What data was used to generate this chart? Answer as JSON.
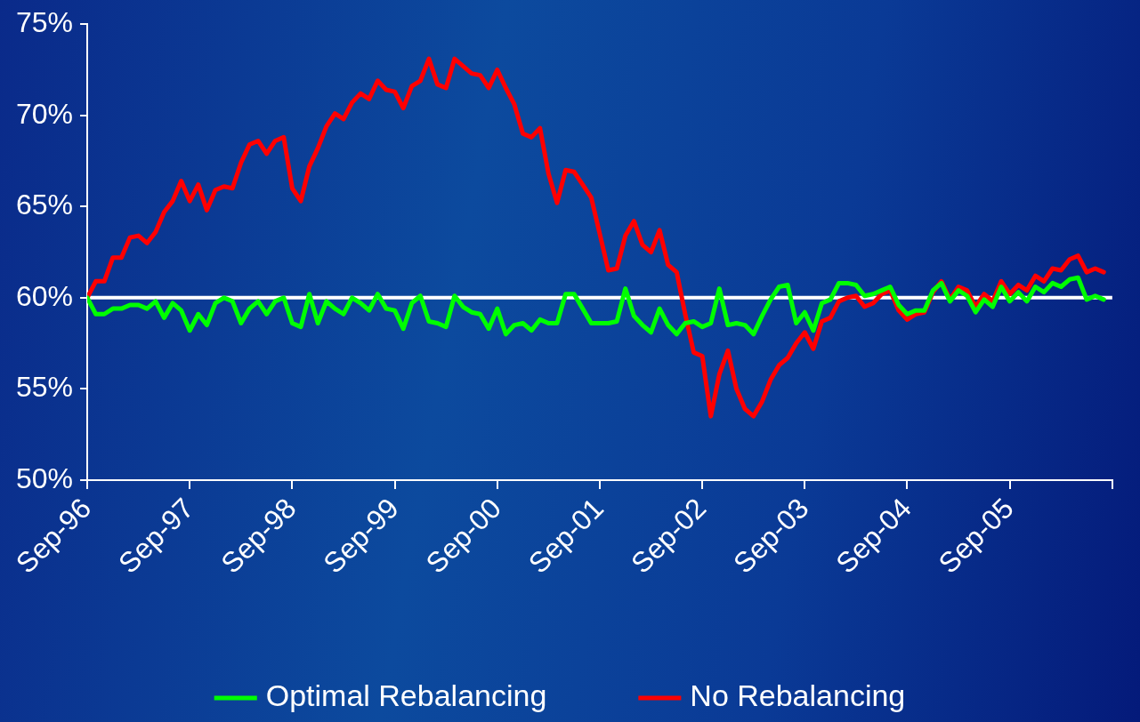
{
  "chart_data": {
    "type": "line",
    "x": [
      "1996-09",
      "1996-10",
      "1996-11",
      "1996-12",
      "1997-01",
      "1997-02",
      "1997-03",
      "1997-04",
      "1997-05",
      "1997-06",
      "1997-07",
      "1997-08",
      "1997-09",
      "1997-10",
      "1997-11",
      "1997-12",
      "1998-01",
      "1998-02",
      "1998-03",
      "1998-04",
      "1998-05",
      "1998-06",
      "1998-07",
      "1998-08",
      "1998-09",
      "1998-10",
      "1998-11",
      "1998-12",
      "1999-01",
      "1999-02",
      "1999-03",
      "1999-04",
      "1999-05",
      "1999-06",
      "1999-07",
      "1999-08",
      "1999-09",
      "1999-10",
      "1999-11",
      "1999-12",
      "2000-01",
      "2000-02",
      "2000-03",
      "2000-04",
      "2000-05",
      "2000-06",
      "2000-07",
      "2000-08",
      "2000-09",
      "2000-10",
      "2000-11",
      "2000-12",
      "2001-01",
      "2001-02",
      "2001-03",
      "2001-04",
      "2001-05",
      "2001-06",
      "2001-07",
      "2001-08",
      "2001-09",
      "2001-10",
      "2001-11",
      "2001-12",
      "2002-01",
      "2002-02",
      "2002-03",
      "2002-04",
      "2002-05",
      "2002-06",
      "2002-07",
      "2002-08",
      "2002-09",
      "2002-10",
      "2002-11",
      "2002-12",
      "2003-01",
      "2003-02",
      "2003-03",
      "2003-04",
      "2003-05",
      "2003-06",
      "2003-07",
      "2003-08",
      "2003-09",
      "2003-10",
      "2003-11",
      "2003-12",
      "2004-01",
      "2004-02",
      "2004-03",
      "2004-04",
      "2004-05",
      "2004-06",
      "2004-07",
      "2004-08",
      "2004-09",
      "2004-10",
      "2004-11",
      "2004-12",
      "2005-01",
      "2005-02",
      "2005-03",
      "2005-04",
      "2005-05",
      "2005-06",
      "2005-07",
      "2005-08",
      "2005-09",
      "2005-10",
      "2005-11",
      "2005-12",
      "2006-01",
      "2006-02",
      "2006-03",
      "2006-04",
      "2006-05",
      "2006-06",
      "2006-07",
      "2006-08"
    ],
    "series": [
      {
        "name": "Optimal Rebalancing",
        "color": "#00ff00",
        "values": [
          60.0,
          59.1,
          59.1,
          59.4,
          59.4,
          59.6,
          59.6,
          59.4,
          59.8,
          58.9,
          59.7,
          59.3,
          58.2,
          59.1,
          58.5,
          59.7,
          60.0,
          59.8,
          58.6,
          59.4,
          59.8,
          59.1,
          59.8,
          60.0,
          58.6,
          58.4,
          60.2,
          58.6,
          59.8,
          59.4,
          59.1,
          60.0,
          59.7,
          59.3,
          60.2,
          59.4,
          59.3,
          58.3,
          59.7,
          60.1,
          58.7,
          58.6,
          58.4,
          60.1,
          59.5,
          59.2,
          59.1,
          58.3,
          59.4,
          58.0,
          58.5,
          58.6,
          58.2,
          58.8,
          58.6,
          58.6,
          60.2,
          60.2,
          59.4,
          58.6,
          58.6,
          58.6,
          58.7,
          60.5,
          59.0,
          58.5,
          58.1,
          59.4,
          58.5,
          58.0,
          58.6,
          58.7,
          58.4,
          58.6,
          60.5,
          58.5,
          58.6,
          58.5,
          58.0,
          59.0,
          59.9,
          60.6,
          60.7,
          58.6,
          59.2,
          58.2,
          59.7,
          59.9,
          60.8,
          60.8,
          60.7,
          60.1,
          60.2,
          60.4,
          60.6,
          59.6,
          59.1,
          59.3,
          59.3,
          60.4,
          60.8,
          59.8,
          60.4,
          60.1,
          59.2,
          59.9,
          59.5,
          60.6,
          59.8,
          60.3,
          59.8,
          60.6,
          60.3,
          60.8,
          60.6,
          61.0,
          61.1,
          59.9,
          60.1,
          59.9
        ]
      },
      {
        "name": "No Rebalancing",
        "color": "#ff0000",
        "values": [
          60.0,
          60.9,
          60.9,
          62.2,
          62.2,
          63.3,
          63.4,
          63.0,
          63.6,
          64.7,
          65.3,
          66.4,
          65.3,
          66.2,
          64.8,
          65.9,
          66.1,
          66.0,
          67.4,
          68.4,
          68.6,
          67.9,
          68.6,
          68.8,
          66.0,
          65.3,
          67.2,
          68.2,
          69.4,
          70.1,
          69.8,
          70.7,
          71.2,
          70.9,
          71.9,
          71.4,
          71.3,
          70.4,
          71.6,
          71.9,
          73.1,
          71.7,
          71.5,
          73.1,
          72.7,
          72.3,
          72.2,
          71.5,
          72.5,
          71.5,
          70.6,
          69.0,
          68.8,
          69.3,
          66.8,
          65.2,
          67.0,
          66.9,
          66.2,
          65.5,
          63.5,
          61.5,
          61.6,
          63.4,
          64.2,
          62.9,
          62.5,
          63.7,
          61.8,
          61.4,
          59.1,
          57.0,
          56.8,
          53.5,
          55.8,
          57.1,
          55.0,
          53.9,
          53.5,
          54.3,
          55.5,
          56.3,
          56.7,
          57.5,
          58.1,
          57.2,
          58.7,
          58.9,
          59.8,
          60.0,
          60.1,
          59.5,
          59.7,
          60.2,
          60.4,
          59.3,
          58.8,
          59.1,
          59.2,
          60.3,
          60.9,
          59.9,
          60.6,
          60.4,
          59.5,
          60.2,
          59.8,
          60.9,
          60.2,
          60.7,
          60.4,
          61.2,
          60.9,
          61.6,
          61.5,
          62.1,
          62.3,
          61.4,
          61.6,
          61.4
        ]
      }
    ],
    "xlim": [
      "1996-09",
      "2006-09"
    ],
    "xticks": [
      {
        "value": "1996-09",
        "label": "Sep-96"
      },
      {
        "value": "1997-09",
        "label": "Sep-97"
      },
      {
        "value": "1998-09",
        "label": "Sep-98"
      },
      {
        "value": "1999-09",
        "label": "Sep-99"
      },
      {
        "value": "2000-09",
        "label": "Sep-00"
      },
      {
        "value": "2001-09",
        "label": "Sep-01"
      },
      {
        "value": "2002-09",
        "label": "Sep-02"
      },
      {
        "value": "2003-09",
        "label": "Sep-03"
      },
      {
        "value": "2004-09",
        "label": "Sep-04"
      },
      {
        "value": "2005-09",
        "label": "Sep-05"
      },
      {
        "value": "2006-09",
        "label": null
      }
    ],
    "ylim": [
      50,
      75
    ],
    "yticks": [
      {
        "value": 50,
        "label": "50%"
      },
      {
        "value": 55,
        "label": "55%"
      },
      {
        "value": 60,
        "label": "60%"
      },
      {
        "value": 65,
        "label": "65%"
      },
      {
        "value": 70,
        "label": "70%"
      },
      {
        "value": 75,
        "label": "75%"
      }
    ],
    "ref_lines": [
      {
        "axis": "y",
        "value": 60,
        "label": null,
        "color": "#ffffff"
      }
    ],
    "legend": "bottom",
    "grid": false,
    "marker": "none",
    "line_style": "solid"
  }
}
